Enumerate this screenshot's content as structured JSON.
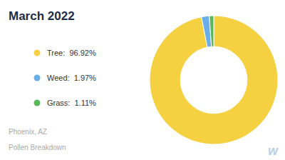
{
  "chart_data": {
    "type": "donut",
    "title": "March 2022",
    "categories": [
      "Tree:  96.92%",
      "Weed:  1.97%",
      "Grass:  1.11%"
    ],
    "values": [
      96.92,
      1.97,
      1.11
    ],
    "colors": [
      "#f5d142",
      "#6aaee8",
      "#5cb85c"
    ],
    "legend": "left",
    "annotations": [
      "Phoenix, AZ",
      "Pollen Breakdown",
      "w"
    ]
  }
}
